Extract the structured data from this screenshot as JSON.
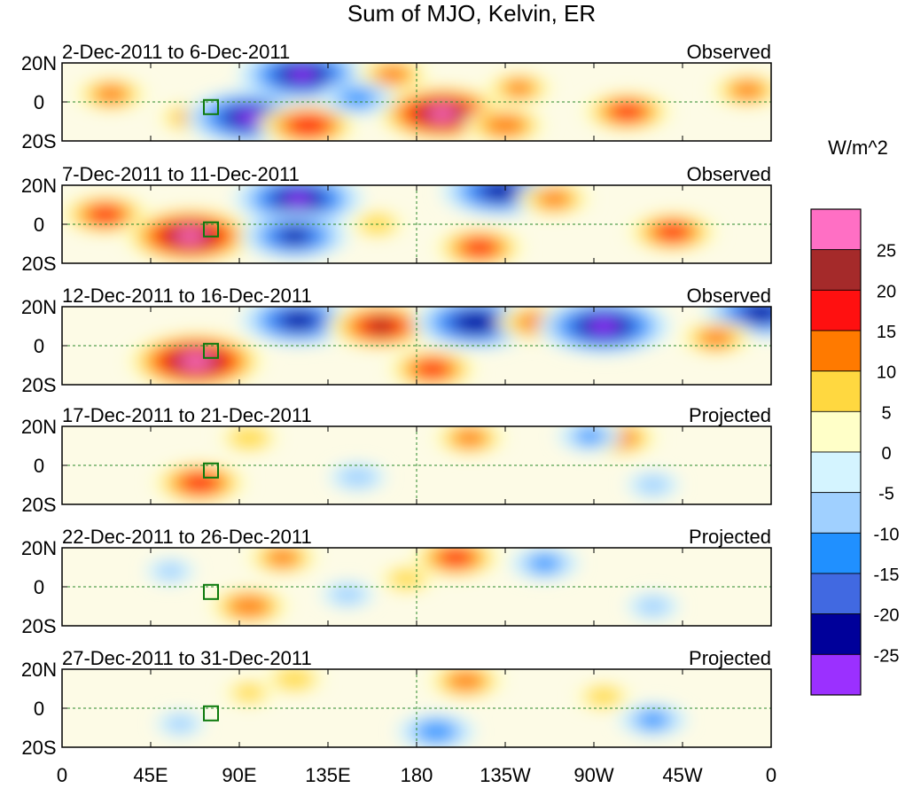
{
  "chart_data": {
    "type": "heatmap",
    "title": "Sum of MJO, Kelvin, ER",
    "units": "W/m^2",
    "x_ticks": [
      "0",
      "45E",
      "90E",
      "135E",
      "180",
      "135W",
      "90W",
      "45W",
      "0"
    ],
    "x_range_deg": [
      0,
      360
    ],
    "y_ticks": [
      "20N",
      "0",
      "20S"
    ],
    "y_range_deg": [
      -20,
      20
    ],
    "colorbar": {
      "levels": [
        25,
        20,
        15,
        10,
        5,
        0,
        -5,
        -10,
        -15,
        -20,
        -25
      ],
      "colors": [
        "#ff6fc4",
        "#a52a2a",
        "#ff1010",
        "#ff7a00",
        "#ffd840",
        "#ffffc8",
        "#d4f4ff",
        "#a0d0ff",
        "#2090ff",
        "#4169e1",
        "#00009a",
        "#9b30ff"
      ]
    },
    "panels": [
      {
        "period": "2-Dec-2011 to 6-Dec-2011",
        "status": "Observed",
        "features": [
          {
            "lon": 25,
            "lat": 4,
            "value": 12
          },
          {
            "lon": 65,
            "lat": -8,
            "value": 10
          },
          {
            "lon": 95,
            "lat": -8,
            "value": -25
          },
          {
            "lon": 122,
            "lat": 14,
            "value": -25
          },
          {
            "lon": 125,
            "lat": -12,
            "value": 18
          },
          {
            "lon": 168,
            "lat": 14,
            "value": 12
          },
          {
            "lon": 193,
            "lat": -6,
            "value": 26
          },
          {
            "lon": 150,
            "lat": 2,
            "value": -12
          },
          {
            "lon": 225,
            "lat": -12,
            "value": 14
          },
          {
            "lon": 287,
            "lat": -5,
            "value": 16
          },
          {
            "lon": 348,
            "lat": 6,
            "value": 12
          },
          {
            "lon": 232,
            "lat": 7,
            "value": 11
          }
        ]
      },
      {
        "period": "7-Dec-2011 to 11-Dec-2011",
        "status": "Observed",
        "features": [
          {
            "lon": 22,
            "lat": 5,
            "value": 16
          },
          {
            "lon": 65,
            "lat": -6,
            "value": 26
          },
          {
            "lon": 120,
            "lat": 13,
            "value": -25
          },
          {
            "lon": 118,
            "lat": -6,
            "value": -20
          },
          {
            "lon": 222,
            "lat": 17,
            "value": -22
          },
          {
            "lon": 212,
            "lat": -12,
            "value": 16
          },
          {
            "lon": 250,
            "lat": 13,
            "value": 12
          },
          {
            "lon": 310,
            "lat": -4,
            "value": 16
          },
          {
            "lon": 160,
            "lat": 0,
            "value": 8
          }
        ]
      },
      {
        "period": "12-Dec-2011 to 16-Dec-2011",
        "status": "Observed",
        "features": [
          {
            "lon": 68,
            "lat": -8,
            "value": 27
          },
          {
            "lon": 120,
            "lat": 13,
            "value": -22
          },
          {
            "lon": 162,
            "lat": 10,
            "value": 20
          },
          {
            "lon": 188,
            "lat": -12,
            "value": 16
          },
          {
            "lon": 210,
            "lat": 12,
            "value": -24
          },
          {
            "lon": 242,
            "lat": 12,
            "value": 14
          },
          {
            "lon": 275,
            "lat": 10,
            "value": -26
          },
          {
            "lon": 355,
            "lat": 17,
            "value": -22
          },
          {
            "lon": 332,
            "lat": 4,
            "value": 12
          }
        ]
      },
      {
        "period": "17-Dec-2011 to 21-Dec-2011",
        "status": "Projected",
        "features": [
          {
            "lon": 70,
            "lat": -9,
            "value": 17
          },
          {
            "lon": 95,
            "lat": 14,
            "value": 9
          },
          {
            "lon": 207,
            "lat": 14,
            "value": 12
          },
          {
            "lon": 283,
            "lat": 14,
            "value": 13
          },
          {
            "lon": 268,
            "lat": 15,
            "value": -10
          },
          {
            "lon": 150,
            "lat": -6,
            "value": -8
          },
          {
            "lon": 300,
            "lat": -10,
            "value": -7
          }
        ]
      },
      {
        "period": "22-Dec-2011 to 26-Dec-2011",
        "status": "Projected",
        "features": [
          {
            "lon": 95,
            "lat": -10,
            "value": 14
          },
          {
            "lon": 112,
            "lat": 15,
            "value": 12
          },
          {
            "lon": 200,
            "lat": 15,
            "value": 16
          },
          {
            "lon": 175,
            "lat": 4,
            "value": 8
          },
          {
            "lon": 245,
            "lat": 12,
            "value": -11
          },
          {
            "lon": 145,
            "lat": -4,
            "value": -7
          },
          {
            "lon": 300,
            "lat": -10,
            "value": -7
          },
          {
            "lon": 55,
            "lat": 8,
            "value": -6
          }
        ]
      },
      {
        "period": "27-Dec-2011 to 31-Dec-2011",
        "status": "Projected",
        "features": [
          {
            "lon": 205,
            "lat": 14,
            "value": 13
          },
          {
            "lon": 118,
            "lat": 15,
            "value": 9
          },
          {
            "lon": 190,
            "lat": -12,
            "value": -13
          },
          {
            "lon": 300,
            "lat": -6,
            "value": -11
          },
          {
            "lon": 275,
            "lat": 6,
            "value": 8
          },
          {
            "lon": 60,
            "lat": -8,
            "value": -6
          },
          {
            "lon": 95,
            "lat": 8,
            "value": 7
          }
        ]
      }
    ]
  }
}
